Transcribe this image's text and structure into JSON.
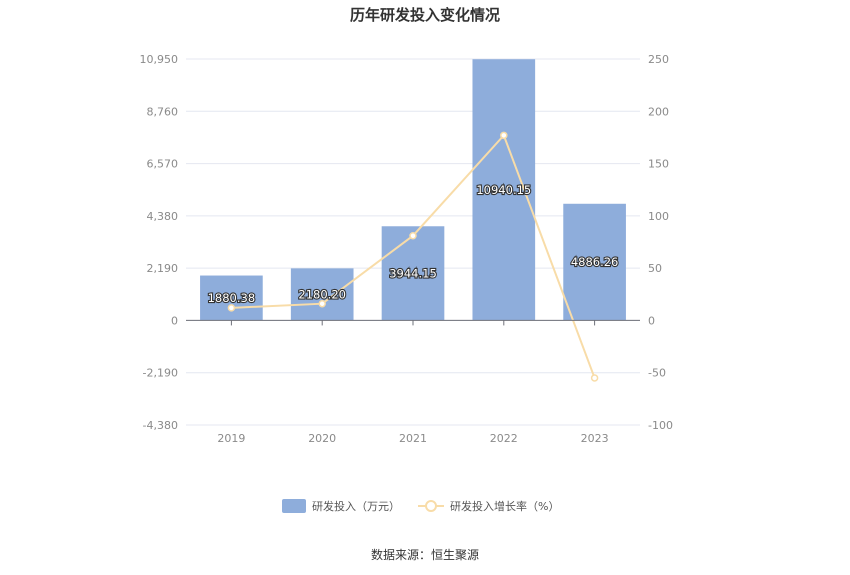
{
  "chart_data": {
    "type": "bar",
    "title": "历年研发投入变化情况",
    "categories": [
      "2019",
      "2020",
      "2021",
      "2022",
      "2023"
    ],
    "series": [
      {
        "name": "研发投入（万元）",
        "type": "bar",
        "axis": "left",
        "values": [
          1880.38,
          2180.2,
          3944.15,
          10940.15,
          4886.26
        ],
        "labels": [
          "1880.38",
          "2180.20",
          "3944.15",
          "10940.15",
          "4886.26"
        ],
        "color": "#8eaddb"
      },
      {
        "name": "研发投入增长率（%）",
        "type": "line",
        "axis": "right",
        "values": [
          12,
          16,
          81,
          177,
          -55
        ],
        "color": "#f8dca8"
      }
    ],
    "y_left": {
      "ylim": [
        -4380,
        10950
      ],
      "ticks": [
        "10,950",
        "8,760",
        "6,570",
        "4,380",
        "2,190",
        "0",
        "-2,190",
        "-4,380"
      ],
      "tick_values": [
        10950,
        8760,
        6570,
        4380,
        2190,
        0,
        -2190,
        -4380
      ]
    },
    "y_right": {
      "ylim": [
        -100,
        250
      ],
      "ticks": [
        "250",
        "200",
        "150",
        "100",
        "50",
        "0",
        "-50",
        "-100"
      ],
      "tick_values": [
        250,
        200,
        150,
        100,
        50,
        0,
        -50,
        -100
      ]
    },
    "grid": true,
    "legend_position": "bottom"
  },
  "source": "数据来源：恒生聚源"
}
